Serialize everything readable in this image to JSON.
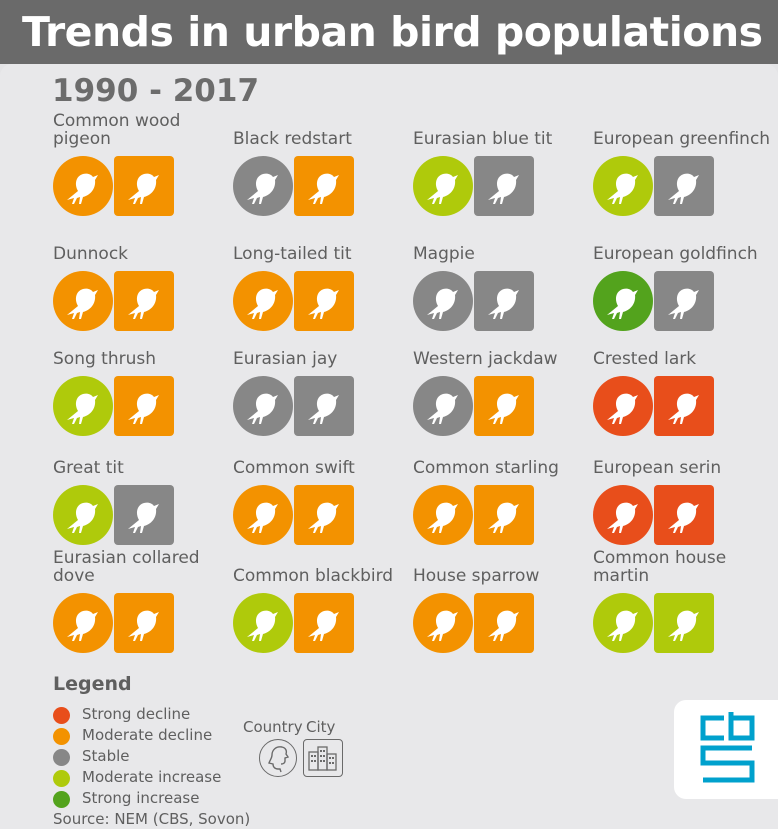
{
  "title": "Trends in urban bird populations",
  "period": "1990 - 2017",
  "colors": {
    "strong_decline": "#e84e1b",
    "moderate_decline": "#f39200",
    "stable": "#878787",
    "moderate_increase": "#afca0b",
    "strong_increase": "#53a31d",
    "logo": "#00a1cd"
  },
  "birds": [
    {
      "name": "Common wood pigeon",
      "country": "moderate_decline",
      "city": "moderate_decline"
    },
    {
      "name": "Black redstart",
      "country": "stable",
      "city": "moderate_decline"
    },
    {
      "name": "Eurasian blue tit",
      "country": "moderate_increase",
      "city": "stable"
    },
    {
      "name": "European greenfinch",
      "country": "moderate_increase",
      "city": "stable"
    },
    {
      "name": "Dunnock",
      "country": "moderate_decline",
      "city": "moderate_decline"
    },
    {
      "name": "Long-tailed tit",
      "country": "moderate_decline",
      "city": "moderate_decline"
    },
    {
      "name": "Magpie",
      "country": "stable",
      "city": "stable"
    },
    {
      "name": "European goldfinch",
      "country": "strong_increase",
      "city": "stable"
    },
    {
      "name": "Song thrush",
      "country": "moderate_increase",
      "city": "moderate_decline"
    },
    {
      "name": "Eurasian jay",
      "country": "stable",
      "city": "stable"
    },
    {
      "name": "Western jackdaw",
      "country": "stable",
      "city": "moderate_decline"
    },
    {
      "name": "Crested lark",
      "country": "strong_decline",
      "city": "strong_decline"
    },
    {
      "name": "Great tit",
      "country": "moderate_increase",
      "city": "stable"
    },
    {
      "name": "Common swift",
      "country": "moderate_decline",
      "city": "moderate_decline"
    },
    {
      "name": "Common starling",
      "country": "moderate_decline",
      "city": "moderate_decline"
    },
    {
      "name": "European serin",
      "country": "strong_decline",
      "city": "strong_decline"
    },
    {
      "name": "Eurasian collared dove",
      "country": "moderate_decline",
      "city": "moderate_decline"
    },
    {
      "name": "Common blackbird",
      "country": "moderate_increase",
      "city": "moderate_decline"
    },
    {
      "name": "House sparrow",
      "country": "moderate_decline",
      "city": "moderate_decline"
    },
    {
      "name": "Common house martin",
      "country": "moderate_increase",
      "city": "moderate_increase"
    }
  ],
  "legend": {
    "title": "Legend",
    "items": [
      {
        "key": "strong_decline",
        "label": "Strong decline"
      },
      {
        "key": "moderate_decline",
        "label": "Moderate decline"
      },
      {
        "key": "stable",
        "label": "Stable"
      },
      {
        "key": "moderate_increase",
        "label": "Moderate increase"
      },
      {
        "key": "strong_increase",
        "label": "Strong increase"
      }
    ],
    "country_label": "Country",
    "city_label": "City"
  },
  "source": "Source: NEM (CBS, Sovon)",
  "logo": "cbs"
}
